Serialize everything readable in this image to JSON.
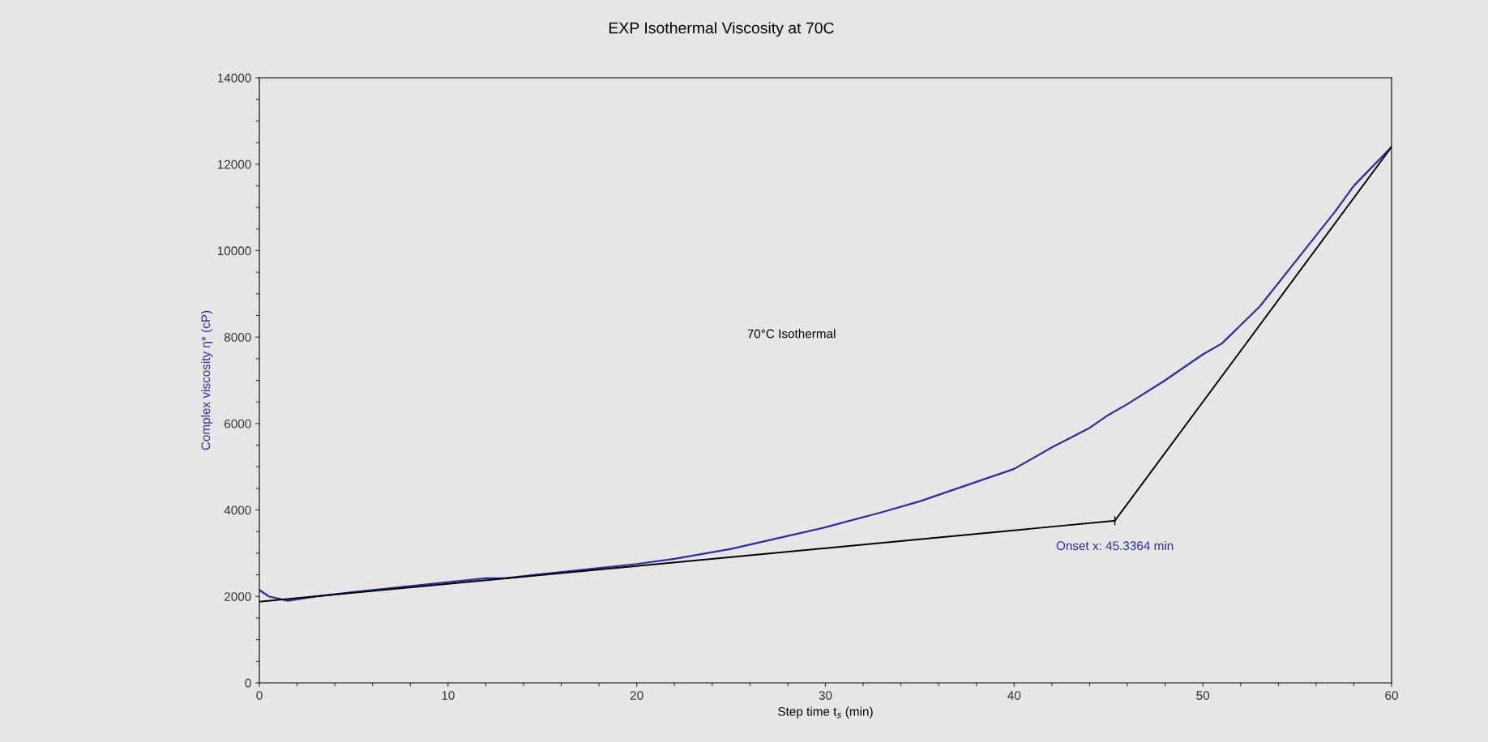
{
  "chart_data": {
    "type": "line",
    "title": "EXP Isothermal Viscosity at 70C",
    "xlabel": "Step time t$_{s}$ (min)",
    "ylabel": "Complex viscosity η* (cP)",
    "xlim": [
      0,
      60
    ],
    "ylim": [
      0,
      14000
    ],
    "xticks": [
      0,
      10,
      20,
      30,
      40,
      50,
      60
    ],
    "yticks": [
      0,
      2000,
      4000,
      6000,
      8000,
      10000,
      12000,
      14000
    ],
    "grid": false,
    "legend": false,
    "series": [
      {
        "color": "#2e2e9a",
        "x": [
          0,
          0.5,
          1.5,
          3,
          5,
          10,
          12,
          13,
          15,
          20,
          22,
          25,
          28,
          30,
          33,
          35,
          38,
          40,
          42,
          44,
          45,
          46,
          48,
          49,
          50,
          51,
          53,
          55,
          57,
          58,
          59,
          60
        ],
        "values": [
          2150,
          2000,
          1900,
          2000,
          2100,
          2330,
          2420,
          2420,
          2520,
          2750,
          2870,
          3100,
          3400,
          3600,
          3950,
          4200,
          4650,
          4950,
          5450,
          5900,
          6200,
          6450,
          7000,
          7300,
          7600,
          7850,
          8700,
          9800,
          10900,
          11500,
          11950,
          12400
        ]
      },
      {
        "color": "#000000",
        "x": [
          0,
          45.3364
        ],
        "values": [
          1880,
          3750
        ]
      },
      {
        "color": "#000000",
        "x": [
          45.3364,
          60
        ],
        "values": [
          3750,
          12400
        ]
      }
    ],
    "annotations": [
      "70°C Isothermal",
      {
        "text": "Onset x: 45.3364 min",
        "x": 45.3364,
        "y": 3750
      }
    ]
  }
}
